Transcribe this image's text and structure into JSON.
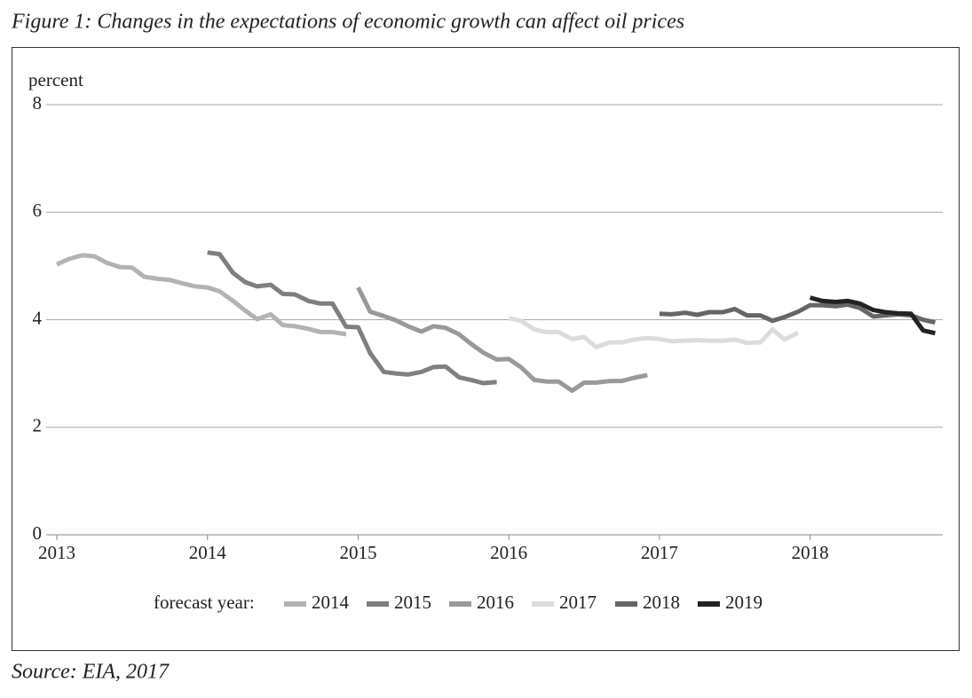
{
  "chart_data": {
    "type": "line",
    "title": "Figure 1: Changes in the expectations of economic growth can affect oil prices",
    "source": "Source: EIA, 2017",
    "y_label": "percent",
    "legend_title": "forecast year:",
    "xlim": [
      2013,
      2018.88
    ],
    "xticks": [
      2013,
      2014,
      2015,
      2016,
      2017,
      2018
    ],
    "ylim": [
      0,
      8
    ],
    "yticks": [
      0,
      2,
      4,
      6,
      8
    ],
    "grid": true,
    "series": [
      {
        "name": "2014",
        "color": "#b3b3b3",
        "x": [
          2013,
          2013.08,
          2013.17,
          2013.25,
          2013.33,
          2013.42,
          2013.5,
          2013.58,
          2013.67,
          2013.75,
          2013.83,
          2013.92,
          2014,
          2014.08,
          2014.17,
          2014.25,
          2014.33,
          2014.42,
          2014.5,
          2014.58,
          2014.67,
          2014.75,
          2014.83,
          2014.92
        ],
        "values": [
          5.03,
          5.13,
          5.2,
          5.18,
          5.06,
          4.98,
          4.97,
          4.8,
          4.76,
          4.74,
          4.68,
          4.62,
          4.6,
          4.53,
          4.35,
          4.17,
          4.01,
          4.1,
          3.9,
          3.88,
          3.83,
          3.77,
          3.77,
          3.73
        ]
      },
      {
        "name": "2015",
        "color": "#7f7f7f",
        "x": [
          2014,
          2014.08,
          2014.17,
          2014.25,
          2014.33,
          2014.42,
          2014.5,
          2014.58,
          2014.67,
          2014.75,
          2014.83,
          2014.92,
          2015,
          2015.08,
          2015.17,
          2015.25,
          2015.33,
          2015.42,
          2015.5,
          2015.58,
          2015.67,
          2015.75,
          2015.83,
          2015.92
        ],
        "values": [
          5.25,
          5.22,
          4.87,
          4.7,
          4.62,
          4.65,
          4.48,
          4.47,
          4.35,
          4.3,
          4.3,
          3.87,
          3.86,
          3.38,
          3.03,
          3.0,
          2.98,
          3.03,
          3.12,
          3.13,
          2.93,
          2.88,
          2.82,
          2.84
        ]
      },
      {
        "name": "2016",
        "color": "#999999",
        "x": [
          2015,
          2015.08,
          2015.17,
          2015.25,
          2015.33,
          2015.42,
          2015.5,
          2015.58,
          2015.67,
          2015.75,
          2015.83,
          2015.92,
          2016,
          2016.08,
          2016.17,
          2016.25,
          2016.33,
          2016.42,
          2016.5,
          2016.58,
          2016.67,
          2016.75,
          2016.83,
          2016.92
        ],
        "values": [
          4.6,
          4.15,
          4.07,
          3.99,
          3.88,
          3.78,
          3.88,
          3.85,
          3.73,
          3.55,
          3.39,
          3.26,
          3.27,
          3.12,
          2.88,
          2.85,
          2.85,
          2.68,
          2.83,
          2.83,
          2.86,
          2.86,
          2.92,
          2.97
        ]
      },
      {
        "name": "2017",
        "color": "#dcdcdc",
        "x": [
          2016,
          2016.08,
          2016.17,
          2016.25,
          2016.33,
          2016.42,
          2016.5,
          2016.58,
          2016.67,
          2016.75,
          2016.83,
          2016.92,
          2017,
          2017.08,
          2017.17,
          2017.25,
          2017.33,
          2017.42,
          2017.5,
          2017.58,
          2017.67,
          2017.75,
          2017.83,
          2017.92
        ],
        "values": [
          4.03,
          3.98,
          3.82,
          3.77,
          3.77,
          3.64,
          3.68,
          3.49,
          3.58,
          3.58,
          3.63,
          3.66,
          3.64,
          3.6,
          3.61,
          3.62,
          3.61,
          3.61,
          3.63,
          3.57,
          3.58,
          3.82,
          3.63,
          3.76
        ]
      },
      {
        "name": "2018",
        "color": "#666666",
        "x": [
          2017,
          2017.08,
          2017.17,
          2017.25,
          2017.33,
          2017.42,
          2017.5,
          2017.58,
          2017.67,
          2017.75,
          2017.83,
          2017.92,
          2018,
          2018.08,
          2018.17,
          2018.25,
          2018.33,
          2018.42,
          2018.5,
          2018.58,
          2018.67,
          2018.75,
          2018.83
        ],
        "values": [
          4.11,
          4.1,
          4.13,
          4.09,
          4.14,
          4.14,
          4.2,
          4.08,
          4.08,
          3.98,
          4.05,
          4.15,
          4.27,
          4.27,
          4.25,
          4.28,
          4.22,
          4.06,
          4.08,
          4.1,
          4.08,
          4.0,
          3.95
        ]
      },
      {
        "name": "2019",
        "color": "#222222",
        "x": [
          2018,
          2018.08,
          2018.17,
          2018.25,
          2018.33,
          2018.42,
          2018.5,
          2018.58,
          2018.67,
          2018.75,
          2018.83
        ],
        "values": [
          4.41,
          4.35,
          4.33,
          4.35,
          4.3,
          4.18,
          4.14,
          4.12,
          4.11,
          3.8,
          3.75
        ]
      }
    ]
  }
}
